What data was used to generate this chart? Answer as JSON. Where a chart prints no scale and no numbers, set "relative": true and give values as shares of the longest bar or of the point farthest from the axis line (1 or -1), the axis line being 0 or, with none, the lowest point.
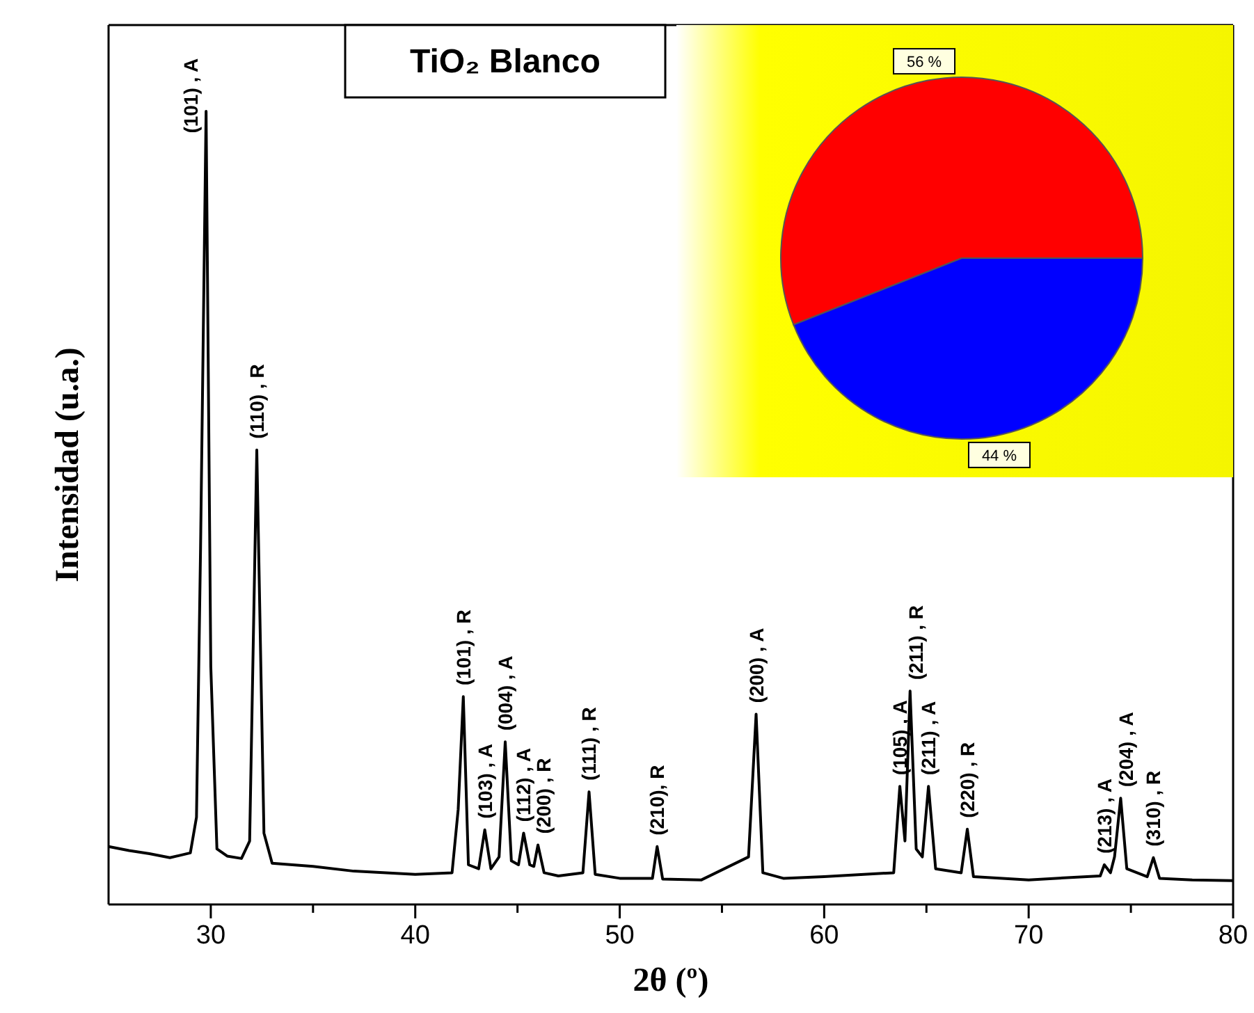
{
  "chart_data": [
    {
      "type": "line",
      "title": "TiO₂ Blanco",
      "xlabel": "2θ (º)",
      "ylabel": "Intensidad (u.a.)",
      "relative": true,
      "xlim": [
        25,
        80
      ],
      "xticks": [
        30,
        40,
        50,
        60,
        70,
        80,
        {
          "value": 35,
          "label": null
        },
        {
          "value": 45,
          "label": null
        },
        {
          "value": 55,
          "label": null
        },
        {
          "value": 65,
          "label": null
        },
        {
          "value": 75,
          "label": null
        }
      ],
      "series": [
        {
          "color": "#000000",
          "x": [
            25,
            26,
            27,
            28,
            29,
            29.3,
            29.5,
            29.77,
            30,
            30.3,
            30.8,
            31.5,
            31.9,
            32.25,
            32.6,
            33,
            35,
            37,
            40,
            41.8,
            42.1,
            42.35,
            42.6,
            43.1,
            43.4,
            43.7,
            44.1,
            44.4,
            44.7,
            45.05,
            45.3,
            45.6,
            45.8,
            46.0,
            46.3,
            47,
            48.2,
            48.5,
            48.8,
            50,
            51.6,
            51.83,
            52.1,
            54,
            56.3,
            56.67,
            57,
            58,
            60,
            63.4,
            63.7,
            63.95,
            64.2,
            64.5,
            64.8,
            65.1,
            65.45,
            66.7,
            67.0,
            67.3,
            70,
            73.5,
            73.7,
            74.0,
            74.2,
            74.5,
            74.8,
            75.8,
            76.1,
            76.4,
            78,
            80
          ],
          "values": [
            0.073,
            0.068,
            0.064,
            0.059,
            0.065,
            0.11,
            0.45,
            1.0,
            0.3,
            0.07,
            0.061,
            0.058,
            0.08,
            0.573,
            0.09,
            0.052,
            0.048,
            0.042,
            0.038,
            0.04,
            0.12,
            0.262,
            0.05,
            0.045,
            0.094,
            0.045,
            0.06,
            0.205,
            0.055,
            0.05,
            0.09,
            0.05,
            0.048,
            0.075,
            0.04,
            0.036,
            0.04,
            0.142,
            0.038,
            0.033,
            0.033,
            0.073,
            0.032,
            0.031,
            0.06,
            0.24,
            0.04,
            0.033,
            0.035,
            0.04,
            0.149,
            0.08,
            0.269,
            0.07,
            0.06,
            0.149,
            0.045,
            0.04,
            0.095,
            0.035,
            0.031,
            0.036,
            0.05,
            0.04,
            0.06,
            0.134,
            0.045,
            0.035,
            0.059,
            0.033,
            0.031,
            0.03
          ]
        }
      ],
      "annotations": [
        {
          "text": "(101) , A",
          "x": 29.77,
          "y": 1.0
        },
        {
          "text": "(110) , R",
          "x": 32.25,
          "y": 0.573
        },
        {
          "text": "(101) , R",
          "x": 42.35,
          "y": 0.262
        },
        {
          "text": "(103) , A",
          "x": 43.4,
          "y": 0.094
        },
        {
          "text": "(004) , A",
          "x": 44.4,
          "y": 0.205
        },
        {
          "text": "(112) , A",
          "x": 45.3,
          "y": 0.09
        },
        {
          "text": "(200) , R",
          "x": 46.0,
          "y": 0.075
        },
        {
          "text": "(111) , R",
          "x": 48.5,
          "y": 0.142
        },
        {
          "text": "(210), R",
          "x": 51.83,
          "y": 0.073
        },
        {
          "text": "(200) , A",
          "x": 56.67,
          "y": 0.24
        },
        {
          "text": "(105) , A",
          "x": 63.7,
          "y": 0.149
        },
        {
          "text": "(211) , R",
          "x": 64.2,
          "y": 0.269
        },
        {
          "text": "(211) , A",
          "x": 65.1,
          "y": 0.149
        },
        {
          "text": "(220) , R",
          "x": 67.0,
          "y": 0.095
        },
        {
          "text": "(213) , A",
          "x": 73.7,
          "y": 0.05
        },
        {
          "text": "(204) , A",
          "x": 74.5,
          "y": 0.134
        },
        {
          "text": "(310) , R",
          "x": 76.1,
          "y": 0.059
        }
      ]
    },
    {
      "type": "pie",
      "categories": [
        null,
        null
      ],
      "values": [
        56,
        44
      ],
      "colors": [
        "#ff0000",
        "#0000ff"
      ],
      "value_labels": [
        "56 %",
        "44 %"
      ]
    }
  ]
}
